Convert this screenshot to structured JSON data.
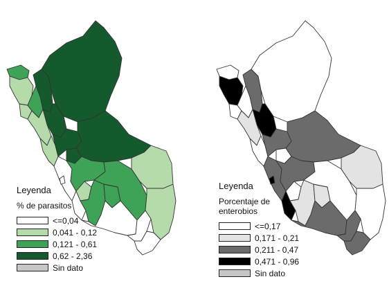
{
  "maps": [
    {
      "legend": {
        "title": "Leyenda",
        "subtitle": "% de parasitos",
        "items": [
          {
            "label": "<=0,04",
            "color": "#ffffff",
            "pattern": "solid"
          },
          {
            "label": "0,041 - 0,12",
            "color": "#b5dbab",
            "pattern": "solid"
          },
          {
            "label": "0,121 - 0,61",
            "color": "#3ea356",
            "pattern": "solid"
          },
          {
            "label": "0,62 - 2,36",
            "color": "#145a2c",
            "pattern": "solid"
          },
          {
            "label": "Sin dato",
            "color": "#ffffff",
            "pattern": "dotted"
          }
        ]
      }
    },
    {
      "legend": {
        "title": "Leyenda",
        "subtitle": "Porcentaje de enterobios",
        "items": [
          {
            "label": "<=0,17",
            "color": "#ffffff",
            "pattern": "solid"
          },
          {
            "label": "0,171 - 0,21",
            "color": "#e3e3e3",
            "pattern": "solid"
          },
          {
            "label": "0,211 - 0,47",
            "color": "#6b6b6b",
            "pattern": "solid"
          },
          {
            "label": "0,471 - 0,96",
            "color": "#000000",
            "pattern": "solid"
          },
          {
            "label": "Sin dato",
            "color": "#ffffff",
            "pattern": "dotted"
          }
        ]
      }
    }
  ],
  "regions": [
    {
      "id": "tumbes",
      "class_left": 2,
      "class_right": 0
    },
    {
      "id": "piura",
      "class_left": 1,
      "class_right": 3
    },
    {
      "id": "amazonas",
      "class_left": 3,
      "class_right": 2
    },
    {
      "id": "loreto",
      "class_left": 3,
      "class_right": 0
    },
    {
      "id": "lambayeque",
      "class_left": 1,
      "class_right": 0
    },
    {
      "id": "cajamarca",
      "class_left": 2,
      "class_right": 0
    },
    {
      "id": "san-martin",
      "class_left": 3,
      "class_right": 3
    },
    {
      "id": "la-libertad",
      "class_left": 1,
      "class_right": 1
    },
    {
      "id": "ancash",
      "class_left": 1,
      "class_right": 0
    },
    {
      "id": "huanuco",
      "class_left": 3,
      "class_right": 2
    },
    {
      "id": "pasco",
      "class_left": 3,
      "class_right": 0
    },
    {
      "id": "ucayali",
      "class_left": 3,
      "class_right": 2
    },
    {
      "id": "lima",
      "class_left": 0,
      "class_right": 2
    },
    {
      "id": "callao",
      "class_left": 0,
      "class_right": 3
    },
    {
      "id": "junin",
      "class_left": 2,
      "class_right": 2
    },
    {
      "id": "huancavelica",
      "class_left": 1,
      "class_right": 0
    },
    {
      "id": "ica",
      "class_left": 0,
      "class_right": 3
    },
    {
      "id": "ayacucho",
      "class_left": 2,
      "class_right": 1
    },
    {
      "id": "apurimac",
      "class_left": 2,
      "class_right": 1
    },
    {
      "id": "cusco",
      "class_left": 2,
      "class_right": 0
    },
    {
      "id": "madre-de-dios",
      "class_left": 1,
      "class_right": 1
    },
    {
      "id": "puno",
      "class_left": 1,
      "class_right": 0
    },
    {
      "id": "arequipa",
      "class_left": 0,
      "class_right": 2
    },
    {
      "id": "moquegua",
      "class_left": 0,
      "class_right": 2
    },
    {
      "id": "tacna",
      "class_left": 0,
      "class_right": 2
    }
  ]
}
